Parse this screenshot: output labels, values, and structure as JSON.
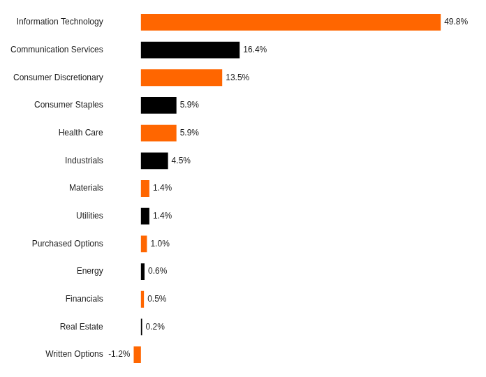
{
  "chart_data": {
    "type": "bar",
    "orientation": "horizontal",
    "categories": [
      "Information Technology",
      "Communication Services",
      "Consumer Discretionary",
      "Consumer Staples",
      "Health Care",
      "Industrials",
      "Materials",
      "Utilities",
      "Purchased Options",
      "Energy",
      "Financials",
      "Real Estate",
      "Written Options"
    ],
    "values": [
      49.8,
      16.4,
      13.5,
      5.9,
      5.9,
      4.5,
      1.4,
      1.4,
      1.0,
      0.6,
      0.5,
      0.2,
      -1.2
    ],
    "value_labels": [
      "49.8%",
      "16.4%",
      "13.5%",
      "5.9%",
      "5.9%",
      "4.5%",
      "1.4%",
      "1.4%",
      "1.0%",
      "0.6%",
      "0.5%",
      "0.2%",
      "-1.2%"
    ],
    "colors": [
      "#FF6600",
      "#000000",
      "#FF6600",
      "#000000",
      "#FF6600",
      "#000000",
      "#FF6600",
      "#000000",
      "#FF6600",
      "#000000",
      "#FF6600",
      "#000000",
      "#FF6600"
    ],
    "xlim": [
      -5,
      55
    ],
    "data_labels": true,
    "tick_labels": "y",
    "grid": false
  }
}
